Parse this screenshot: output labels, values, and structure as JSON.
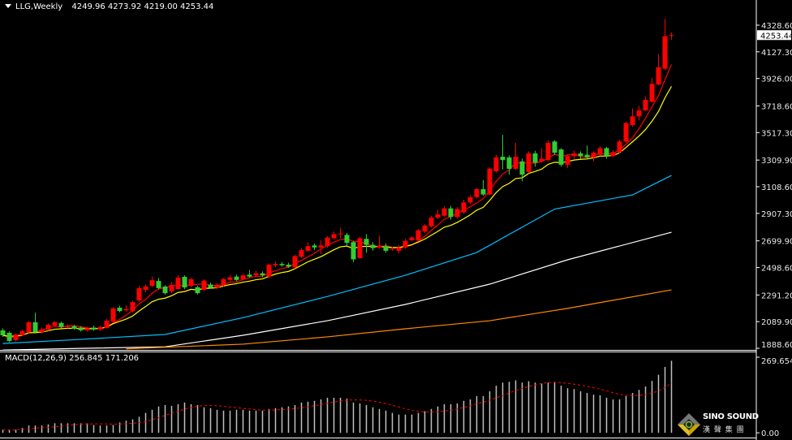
{
  "header": {
    "symbol": "LLG,Weekly",
    "open": "4249.96",
    "high": "4273.92",
    "low": "4219.00",
    "close": "4253.44"
  },
  "macd_header": {
    "label": "MACD(12,26,9)",
    "main": "256.845",
    "signal": "171.206"
  },
  "logo": {
    "name": "SINO SOUND",
    "chinese": "漢 聲 集 團"
  },
  "colors": {
    "background": "#000000",
    "up_candle": "#ff0000",
    "down_candle": "#32cd32",
    "ma_fast": "#ff0000",
    "ma_slow": "#ffff00",
    "ma_blue": "#00bfff",
    "ma_white": "#ffffff",
    "ma_orange": "#ff8c00",
    "macd_hist": "#c0c0c0",
    "macd_signal": "#ff0000"
  },
  "chart_data": [
    {
      "type": "candlestick",
      "timeframe": "Weekly",
      "ylim": [
        1876.6,
        4518.6
      ],
      "price_ticks": [
        "4328.60",
        "4127.30",
        "3926.00",
        "3718.60",
        "3517.30",
        "3309.90",
        "3108.60",
        "2907.30",
        "2699.90",
        "2498.60",
        "2291.20",
        "2089.90",
        "1888.60"
      ],
      "current_price": "4253.44",
      "ohlc": [
        [
          2024,
          2040,
          1975,
          1987
        ],
        [
          2005,
          2015,
          1935,
          1944
        ],
        [
          1950,
          2000,
          1940,
          1993
        ],
        [
          1987,
          2030,
          1980,
          2018
        ],
        [
          2011,
          2095,
          2000,
          2085
        ],
        [
          2085,
          2158,
          2000,
          2011
        ],
        [
          2011,
          2045,
          2000,
          2030
        ],
        [
          2030,
          2075,
          2020,
          2066
        ],
        [
          2060,
          2095,
          2050,
          2085
        ],
        [
          2080,
          2090,
          2040,
          2050
        ],
        [
          2050,
          2070,
          2040,
          2060
        ],
        [
          2055,
          2065,
          2030,
          2036
        ],
        [
          2045,
          2055,
          2015,
          2025
        ],
        [
          2025,
          2050,
          2015,
          2040
        ],
        [
          2045,
          2060,
          2020,
          2030
        ],
        [
          2030,
          2060,
          2020,
          2050
        ],
        [
          2042,
          2110,
          2035,
          2097
        ],
        [
          2091,
          2200,
          2085,
          2190
        ],
        [
          2195,
          2210,
          2160,
          2170
        ],
        [
          2175,
          2215,
          2165,
          2185
        ],
        [
          2170,
          2250,
          2160,
          2238
        ],
        [
          2250,
          2360,
          2240,
          2343
        ],
        [
          2330,
          2370,
          2310,
          2355
        ],
        [
          2360,
          2430,
          2350,
          2403
        ],
        [
          2397,
          2420,
          2335,
          2343
        ],
        [
          2355,
          2365,
          2295,
          2305
        ],
        [
          2318,
          2390,
          2305,
          2367
        ],
        [
          2336,
          2440,
          2330,
          2422
        ],
        [
          2428,
          2440,
          2335,
          2348
        ],
        [
          2360,
          2420,
          2350,
          2410
        ],
        [
          2350,
          2360,
          2295,
          2305
        ],
        [
          2330,
          2410,
          2320,
          2400
        ],
        [
          2370,
          2385,
          2340,
          2345
        ],
        [
          2345,
          2380,
          2335,
          2365
        ],
        [
          2365,
          2420,
          2355,
          2410
        ],
        [
          2405,
          2440,
          2395,
          2425
        ],
        [
          2430,
          2445,
          2395,
          2405
        ],
        [
          2410,
          2450,
          2400,
          2440
        ],
        [
          2445,
          2480,
          2420,
          2430
        ],
        [
          2440,
          2475,
          2430,
          2455
        ],
        [
          2455,
          2470,
          2425,
          2440
        ],
        [
          2430,
          2530,
          2420,
          2520
        ],
        [
          2515,
          2545,
          2500,
          2525
        ],
        [
          2525,
          2540,
          2505,
          2515
        ],
        [
          2520,
          2535,
          2495,
          2505
        ],
        [
          2500,
          2595,
          2490,
          2585
        ],
        [
          2580,
          2645,
          2570,
          2630
        ],
        [
          2625,
          2690,
          2615,
          2660
        ],
        [
          2665,
          2680,
          2630,
          2650
        ],
        [
          2650,
          2705,
          2600,
          2665
        ],
        [
          2660,
          2735,
          2650,
          2725
        ],
        [
          2720,
          2770,
          2710,
          2750
        ],
        [
          2752,
          2800,
          2720,
          2755
        ],
        [
          2745,
          2760,
          2660,
          2685
        ],
        [
          2690,
          2700,
          2540,
          2560
        ],
        [
          2570,
          2730,
          2565,
          2720
        ],
        [
          2715,
          2750,
          2610,
          2670
        ],
        [
          2670,
          2690,
          2625,
          2645
        ],
        [
          2650,
          2740,
          2640,
          2665
        ],
        [
          2660,
          2680,
          2610,
          2625
        ],
        [
          2640,
          2655,
          2625,
          2640
        ],
        [
          2625,
          2665,
          2605,
          2650
        ],
        [
          2650,
          2715,
          2640,
          2700
        ],
        [
          2705,
          2735,
          2695,
          2725
        ],
        [
          2705,
          2790,
          2695,
          2780
        ],
        [
          2770,
          2825,
          2760,
          2815
        ],
        [
          2810,
          2890,
          2800,
          2875
        ],
        [
          2875,
          2935,
          2865,
          2900
        ],
        [
          2890,
          2960,
          2880,
          2945
        ],
        [
          2945,
          2965,
          2860,
          2880
        ],
        [
          2880,
          2955,
          2870,
          2940
        ],
        [
          2915,
          3010,
          2905,
          2990
        ],
        [
          2990,
          3045,
          2980,
          3030
        ],
        [
          3030,
          3100,
          3020,
          3090
        ],
        [
          3090,
          3160,
          3040,
          3050
        ],
        [
          3050,
          3255,
          3045,
          3245
        ],
        [
          3225,
          3350,
          3215,
          3330
        ],
        [
          3335,
          3500,
          3240,
          3310
        ],
        [
          3330,
          3345,
          3200,
          3244
        ],
        [
          3244,
          3440,
          3235,
          3335
        ],
        [
          3300,
          3320,
          3150,
          3200
        ],
        [
          3220,
          3375,
          3210,
          3360
        ],
        [
          3360,
          3380,
          3260,
          3290
        ],
        [
          3300,
          3400,
          3290,
          3320
        ],
        [
          3310,
          3460,
          3300,
          3440
        ],
        [
          3450,
          3460,
          3350,
          3365
        ],
        [
          3390,
          3400,
          3260,
          3275
        ],
        [
          3275,
          3355,
          3250,
          3340
        ],
        [
          3340,
          3380,
          3320,
          3360
        ],
        [
          3360,
          3375,
          3320,
          3340
        ],
        [
          3350,
          3420,
          3320,
          3330
        ],
        [
          3330,
          3375,
          3300,
          3365
        ],
        [
          3350,
          3415,
          3340,
          3400
        ],
        [
          3400,
          3410,
          3320,
          3340
        ],
        [
          3340,
          3385,
          3330,
          3370
        ],
        [
          3370,
          3465,
          3360,
          3450
        ],
        [
          3450,
          3600,
          3440,
          3590
        ],
        [
          3575,
          3700,
          3560,
          3640
        ],
        [
          3640,
          3720,
          3610,
          3685
        ],
        [
          3685,
          3790,
          3680,
          3765
        ],
        [
          3750,
          3930,
          3745,
          3885
        ],
        [
          3880,
          4110,
          3875,
          4010
        ],
        [
          4000,
          4375,
          3990,
          4245
        ],
        [
          4249.96,
          4273.92,
          4219.0,
          4253.44
        ]
      ],
      "moving_averages": [
        {
          "color": "#ff0000",
          "method": "sma",
          "period": 5
        },
        {
          "color": "#ffff00",
          "method": "ema",
          "period": 10
        },
        {
          "color": "#00bfff",
          "points": [
            [
              0,
              1925
            ],
            [
              12,
              1956
            ],
            [
              25,
              1993
            ],
            [
              37,
              2120
            ],
            [
              50,
              2280
            ],
            [
              62,
              2440
            ],
            [
              73,
              2612
            ],
            [
              85,
              2940
            ],
            [
              97,
              3047
            ],
            [
              103,
              3194
            ]
          ]
        },
        {
          "color": "#ffffff",
          "points": [
            [
              0,
              1875
            ],
            [
              12,
              1888
            ],
            [
              25,
              1900
            ],
            [
              37,
              1987
            ],
            [
              50,
              2097
            ],
            [
              62,
              2220
            ],
            [
              75,
              2373
            ],
            [
              87,
              2557
            ],
            [
              103,
              2765
            ]
          ]
        },
        {
          "color": "#ff8c00",
          "points": [
            [
              19,
              1885
            ],
            [
              37,
              1920
            ],
            [
              50,
              1975
            ],
            [
              62,
              2036
            ],
            [
              75,
              2097
            ],
            [
              87,
              2190
            ],
            [
              103,
              2330
            ]
          ]
        }
      ]
    },
    {
      "type": "bar",
      "title": "MACD(12,26,9)",
      "ylim": [
        -17,
        287
      ],
      "ticks": [
        "269.654",
        "0.00"
      ],
      "signal_period": 9,
      "values": [
        11,
        9,
        11,
        17,
        26,
        26,
        26,
        30,
        34,
        34,
        34,
        34,
        34,
        34,
        28,
        26,
        26,
        28,
        37,
        43,
        48,
        57,
        71,
        82,
        94,
        99,
        96,
        102,
        108,
        102,
        99,
        91,
        88,
        82,
        79,
        79,
        82,
        82,
        79,
        79,
        79,
        85,
        88,
        91,
        94,
        99,
        108,
        111,
        114,
        119,
        125,
        125,
        125,
        122,
        108,
        105,
        99,
        91,
        85,
        79,
        71,
        65,
        65,
        65,
        71,
        77,
        85,
        94,
        102,
        102,
        105,
        114,
        119,
        131,
        131,
        148,
        168,
        179,
        182,
        187,
        179,
        184,
        179,
        176,
        179,
        179,
        168,
        159,
        156,
        148,
        142,
        136,
        134,
        125,
        119,
        119,
        131,
        142,
        153,
        165,
        185,
        207,
        235,
        256.845
      ]
    }
  ]
}
